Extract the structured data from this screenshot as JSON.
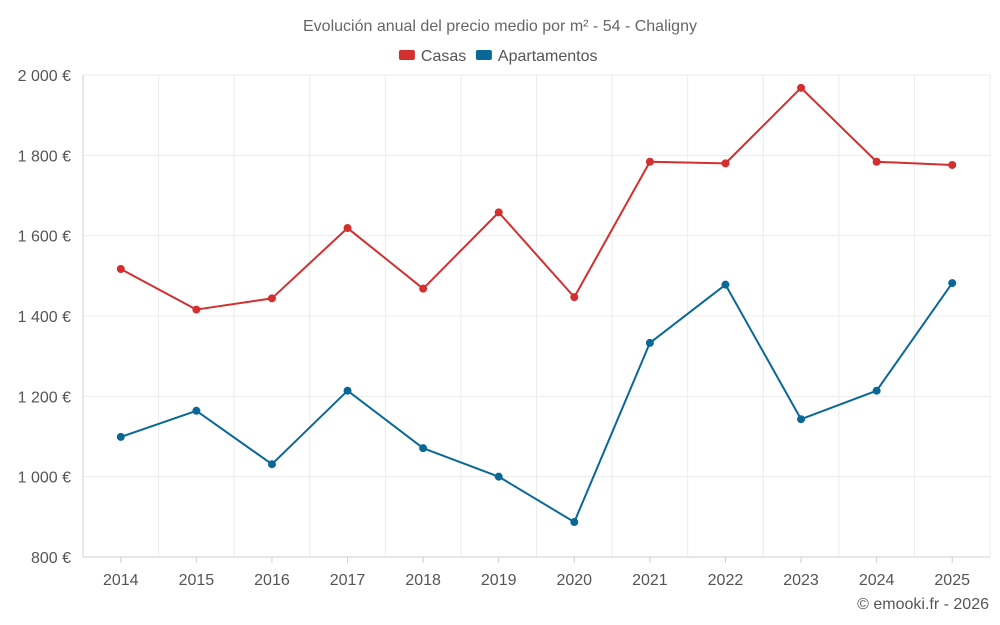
{
  "chart_data": {
    "type": "line",
    "title": "Evolución anual del precio medio por m² - 54 - Chaligny",
    "categories": [
      "2014",
      "2015",
      "2016",
      "2017",
      "2018",
      "2019",
      "2020",
      "2021",
      "2022",
      "2023",
      "2024",
      "2025"
    ],
    "series": [
      {
        "name": "Casas",
        "color": "#d32f2f",
        "values": [
          1517,
          1416,
          1444,
          1619,
          1468,
          1658,
          1447,
          1784,
          1780,
          1968,
          1784,
          1776
        ]
      },
      {
        "name": "Apartamentos",
        "color": "#0a6896",
        "values": [
          1099,
          1164,
          1031,
          1214,
          1071,
          1000,
          887,
          1333,
          1478,
          1143,
          1214,
          1482
        ]
      }
    ],
    "ylim": [
      800,
      2000
    ],
    "yticks": [
      800,
      1000,
      1200,
      1400,
      1600,
      1800,
      2000
    ],
    "ytick_labels": [
      "800 €",
      "1 000 €",
      "1 200 €",
      "1 400 €",
      "1 600 €",
      "1 800 €",
      "2 000 €"
    ],
    "xlabel": "",
    "ylabel": "",
    "grid": true,
    "legend_position": "top-center"
  },
  "credit": "© emooki.fr - 2026"
}
